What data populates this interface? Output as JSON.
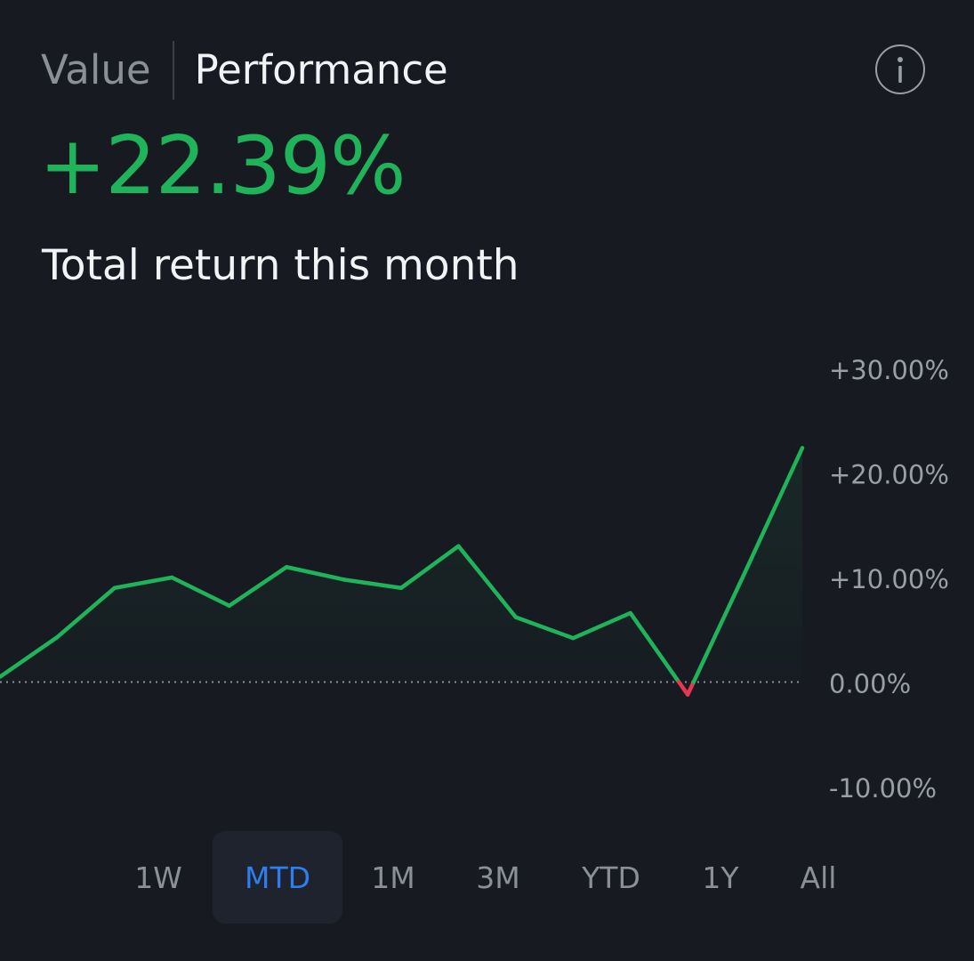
{
  "tabs": {
    "value_label": "Value",
    "performance_label": "Performance",
    "selected": "Performance"
  },
  "info_icon": "info-icon",
  "summary": {
    "return_value": "+22.39%",
    "caption": "Total return this month"
  },
  "colors": {
    "positive": "#1fb35a",
    "negative": "#e8384f",
    "active_range": "#2f7ef0",
    "background": "#171a21"
  },
  "chart_data": {
    "type": "line",
    "x": [
      1,
      2,
      3,
      4,
      5,
      6,
      7,
      8,
      9,
      10,
      11,
      12,
      13,
      14,
      15
    ],
    "values": [
      0.5,
      4.3,
      9.0,
      10.0,
      7.3,
      11.0,
      9.8,
      9.0,
      13.0,
      6.2,
      4.2,
      6.6,
      -1.2,
      10.5,
      22.39
    ],
    "y_ticks": [
      "+30.00%",
      "+20.00%",
      "+10.00%",
      "0.00%",
      "-10.00%"
    ],
    "y_tick_values": [
      30,
      20,
      10,
      0,
      -10
    ],
    "ylim": [
      -10,
      30
    ],
    "baseline": 0,
    "baseline_style": "dotted",
    "grid": false,
    "legend": "none",
    "line_color": "#1fb35a",
    "below_baseline_color": "#e8384f",
    "area_fill": true
  },
  "ranges": {
    "items": [
      "1W",
      "MTD",
      "1M",
      "3M",
      "YTD",
      "1Y",
      "All"
    ],
    "selected": "MTD"
  }
}
